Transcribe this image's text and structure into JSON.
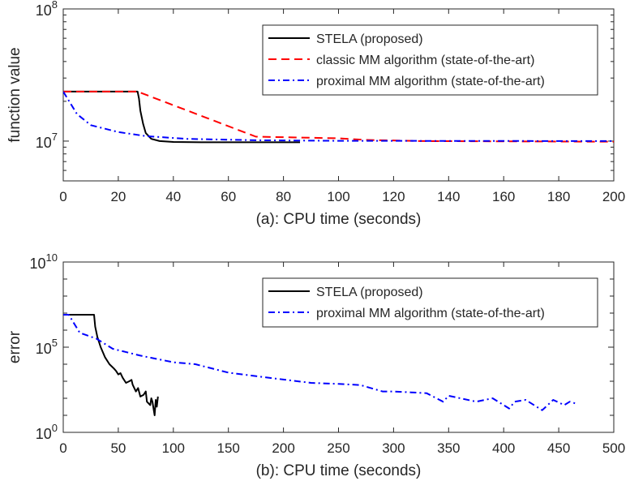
{
  "chart_data": [
    {
      "type": "line",
      "xlabel": "(a): CPU time (seconds)",
      "ylabel": "function value",
      "xlim": [
        0,
        200
      ],
      "ylim": [
        5000000,
        100000000
      ],
      "yscale": "log",
      "xticks": [
        "0",
        "20",
        "40",
        "60",
        "80",
        "100",
        "120",
        "140",
        "160",
        "180",
        "200"
      ],
      "yticks": [
        {
          "base": "10",
          "exp": "7",
          "value": 10000000
        },
        {
          "base": "10",
          "exp": "8",
          "value": 100000000
        }
      ],
      "legend_position": "top-right",
      "grid": false,
      "series": [
        {
          "name": "STELA (proposed)",
          "color": "#000000",
          "style": "solid",
          "x": [
            0,
            27,
            27.5,
            28,
            29,
            30,
            32,
            35,
            40,
            50,
            86
          ],
          "y": [
            23700000,
            23700000,
            21000000,
            17000000,
            13500000,
            11500000,
            10400000,
            10000000,
            9850000,
            9800000,
            9800000
          ]
        },
        {
          "name": "classic MM algorithm (state-of-the-art)",
          "color": "#ff0000",
          "style": "dashed",
          "x": [
            0,
            27,
            70,
            100,
            110,
            130,
            200
          ],
          "y": [
            23700000,
            23700000,
            10800000,
            10500000,
            10200000,
            10000000,
            9900000
          ]
        },
        {
          "name": "proximal MM algorithm (state-of-the-art)",
          "color": "#0000ff",
          "style": "dashdot",
          "x": [
            0,
            5,
            10,
            20,
            30,
            45,
            70,
            100,
            200
          ],
          "y": [
            23700000,
            16000000,
            13200000,
            11700000,
            10900000,
            10400000,
            10150000,
            10050000,
            10000000
          ]
        }
      ]
    },
    {
      "type": "line",
      "xlabel": "(b): CPU time (seconds)",
      "ylabel": "error",
      "xlim": [
        0,
        500
      ],
      "ylim": [
        1,
        10000000000
      ],
      "yscale": "log",
      "xticks": [
        "0",
        "50",
        "100",
        "150",
        "200",
        "250",
        "300",
        "350",
        "400",
        "450",
        "500"
      ],
      "yticks": [
        {
          "base": "10",
          "exp": "0",
          "value": 1
        },
        {
          "base": "10",
          "exp": "5",
          "value": 100000
        },
        {
          "base": "10",
          "exp": "10",
          "value": 10000000000
        }
      ],
      "legend_position": "top-right",
      "grid": false,
      "series": [
        {
          "name": "STELA (proposed)",
          "color": "#000000",
          "style": "solid",
          "x": [
            0,
            28,
            29,
            31,
            34,
            38,
            42,
            46,
            48,
            50,
            52,
            54,
            57,
            60,
            62,
            63,
            66,
            68,
            70,
            73,
            75,
            76,
            79,
            80,
            81,
            83,
            84,
            85,
            86
          ],
          "y": [
            8000000,
            8000000,
            1600000,
            400000,
            100000,
            25000,
            10000,
            5600,
            4000,
            2500,
            3000,
            1600,
            800,
            1000,
            1200,
            630,
            250,
            400,
            126,
            160,
            250,
            63,
            40,
            100,
            63,
            10,
            80,
            32,
            126
          ]
        },
        {
          "name": "proximal MM algorithm (state-of-the-art)",
          "color": "#0000ff",
          "style": "dashdot",
          "x": [
            0,
            5,
            15,
            30,
            45,
            70,
            100,
            120,
            150,
            200,
            225,
            250,
            270,
            290,
            300,
            330,
            345,
            350,
            375,
            390,
            405,
            410,
            420,
            435,
            445,
            455,
            460,
            465
          ],
          "y": [
            8000000,
            8000000,
            700000,
            320000,
            80000,
            32000,
            13000,
            10000,
            3200,
            1260,
            800,
            700,
            600,
            250,
            250,
            200,
            63,
            140,
            63,
            100,
            25,
            63,
            80,
            20,
            80,
            40,
            63,
            50
          ]
        }
      ]
    }
  ]
}
